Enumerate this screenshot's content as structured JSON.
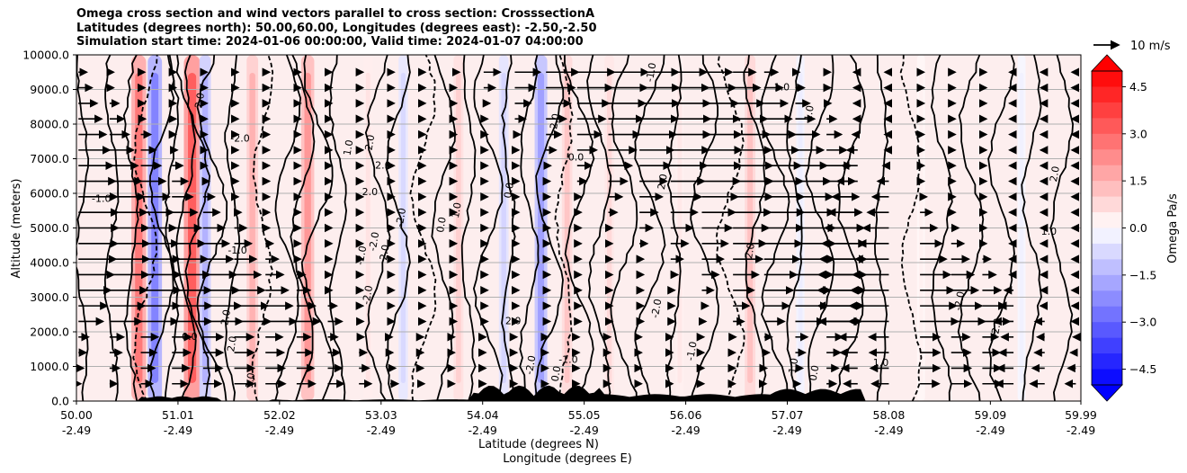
{
  "chart_data": {
    "type": "contour",
    "title_lines": [
      "Omega cross section and wind vectors parallel to cross section: CrosssectionA",
      "Latitudes (degrees north): 50.00,60.00, Longitudes (degrees east): -2.50,-2.50",
      "Simulation start time: 2024-01-06 00:00:00, Valid time: 2024-01-07 04:00:00"
    ],
    "xlabel_lines": [
      "Latitude (degrees N)",
      "Longitude (degrees E)"
    ],
    "ylabel": "Altitude (meters)",
    "ylim": [
      0,
      10000
    ],
    "y_ticks": [
      "0.0",
      "1000.0",
      "2000.0",
      "3000.0",
      "4000.0",
      "5000.0",
      "6000.0",
      "7000.0",
      "8000.0",
      "9000.0",
      "10000.0"
    ],
    "x_ticks": [
      {
        "lat": "50.00",
        "lon": "-2.49"
      },
      {
        "lat": "51.01",
        "lon": "-2.49"
      },
      {
        "lat": "52.02",
        "lon": "-2.49"
      },
      {
        "lat": "53.03",
        "lon": "-2.49"
      },
      {
        "lat": "54.04",
        "lon": "-2.49"
      },
      {
        "lat": "55.05",
        "lon": "-2.49"
      },
      {
        "lat": "56.06",
        "lon": "-2.49"
      },
      {
        "lat": "57.07",
        "lon": "-2.49"
      },
      {
        "lat": "58.08",
        "lon": "-2.49"
      },
      {
        "lat": "59.09",
        "lon": "-2.49"
      },
      {
        "lat": "59.99",
        "lon": "-2.49"
      }
    ],
    "colorbar": {
      "label": "Omega Pa/s",
      "range": [
        -5,
        5
      ],
      "ticks": [
        "4.5",
        "3.0",
        "1.5",
        "0.0",
        "−1.5",
        "−3.0",
        "−4.5"
      ],
      "tick_values": [
        4.5,
        3.0,
        1.5,
        0.0,
        -1.5,
        -3.0,
        -4.5
      ]
    },
    "quiver_key": {
      "label": "10 m/s",
      "speed": 10
    },
    "contour_labels": [
      "0.0",
      "1.0",
      "-1.0",
      "2.0",
      "-2.0"
    ],
    "vertical_streaks": [
      {
        "lat": 50.62,
        "value": 2.8
      },
      {
        "lat": 50.78,
        "value": -2.6
      },
      {
        "lat": 51.15,
        "value": 3.4
      },
      {
        "lat": 51.28,
        "value": -1.6
      },
      {
        "lat": 51.75,
        "value": 1.6
      },
      {
        "lat": 52.3,
        "value": 2.2
      },
      {
        "lat": 52.9,
        "value": 0.6
      },
      {
        "lat": 53.25,
        "value": -0.8
      },
      {
        "lat": 53.8,
        "value": 1.0
      },
      {
        "lat": 54.25,
        "value": -0.9
      },
      {
        "lat": 54.62,
        "value": -2.0
      },
      {
        "lat": 54.88,
        "value": 1.2
      },
      {
        "lat": 55.3,
        "value": 0.8
      },
      {
        "lat": 56.0,
        "value": 0.5
      },
      {
        "lat": 56.7,
        "value": 1.3
      },
      {
        "lat": 57.2,
        "value": -0.4
      },
      {
        "lat": 58.4,
        "value": 0.3
      },
      {
        "lat": 59.4,
        "value": -0.3
      }
    ]
  }
}
